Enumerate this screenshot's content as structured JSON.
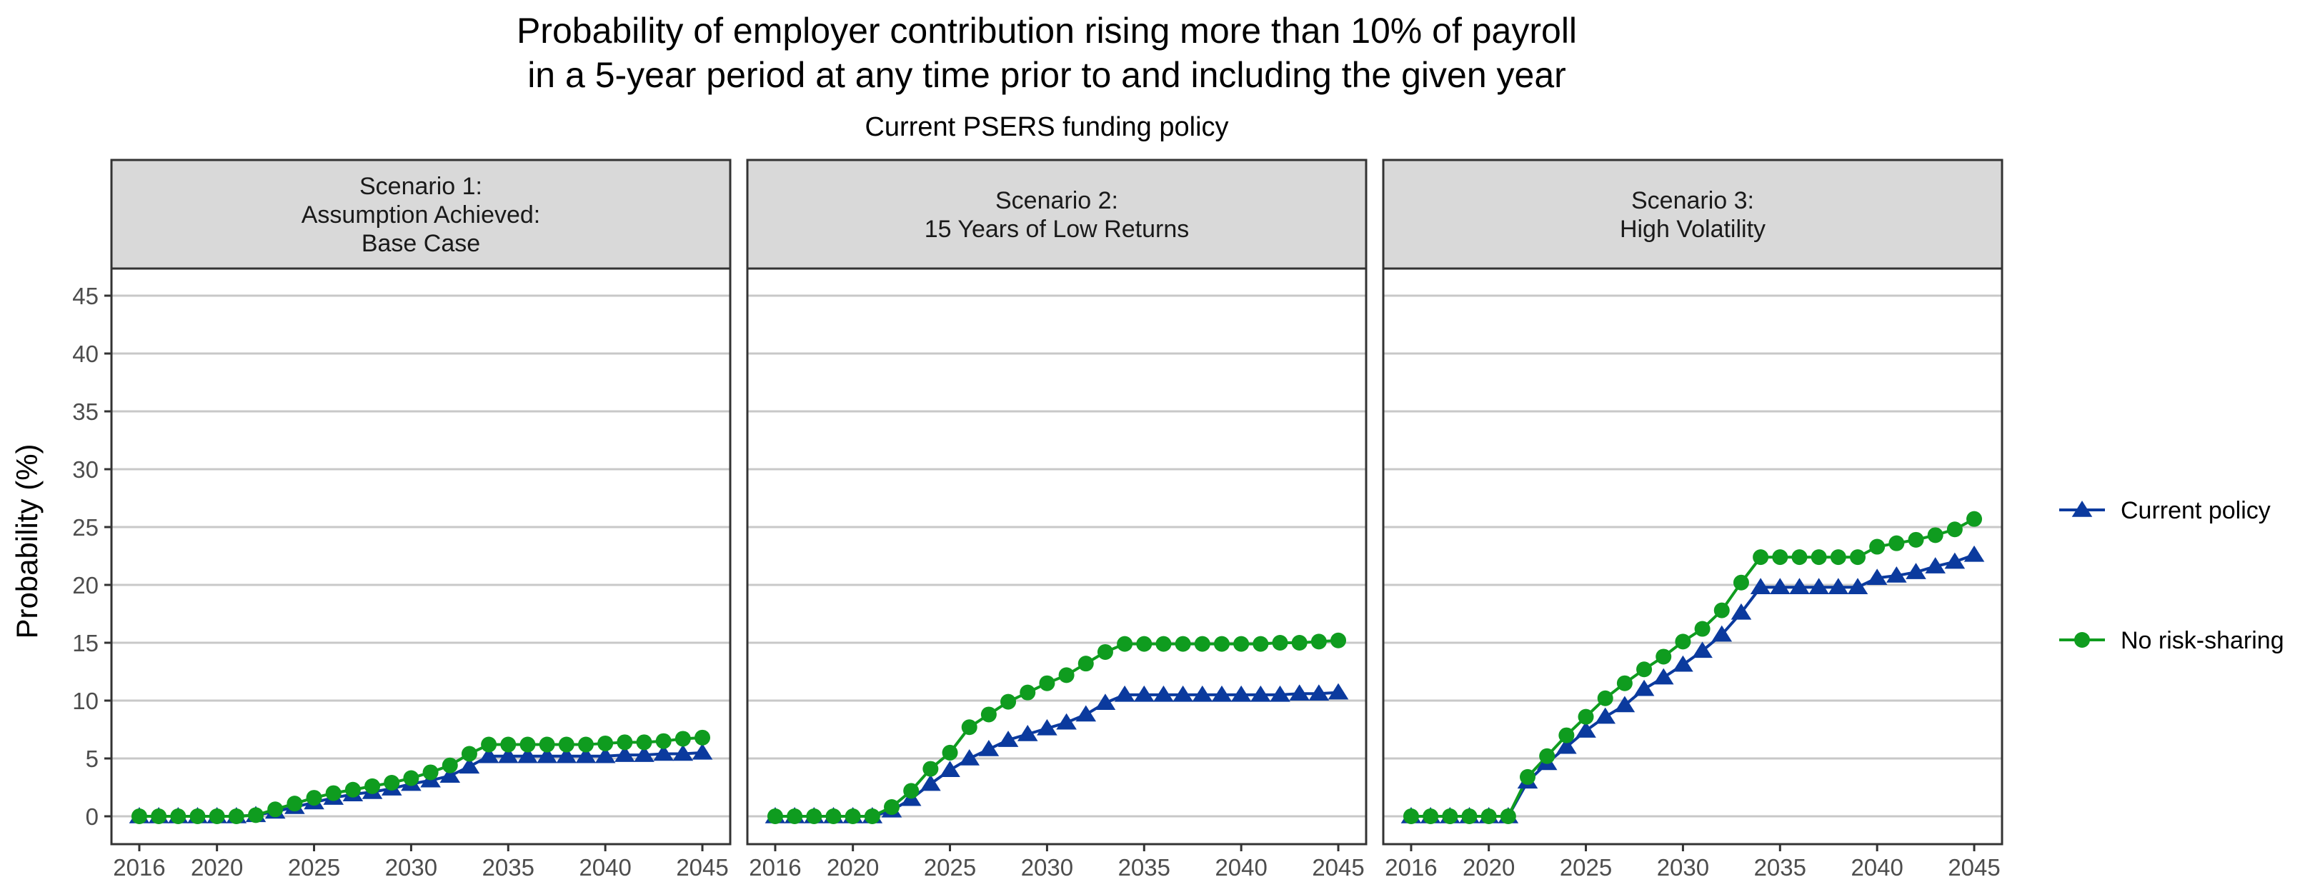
{
  "chart_data": {
    "type": "line",
    "title": "Probability of employer contribution rising more than 10% of payroll",
    "title_line2": "in a 5-year period at any time prior to and including the given year",
    "subtitle": "Current PSERS funding policy",
    "ylabel": "Probability (%)",
    "xlabel": "",
    "ylim": [
      0,
      45
    ],
    "xlim": [
      2016,
      2045
    ],
    "y_ticks": [
      0,
      5,
      10,
      15,
      20,
      25,
      30,
      35,
      40,
      45
    ],
    "x_ticks": [
      2016,
      2020,
      2025,
      2030,
      2035,
      2040,
      2045
    ],
    "grid": "horizontal",
    "legend_position": "right",
    "x": [
      2016,
      2017,
      2018,
      2019,
      2020,
      2021,
      2022,
      2023,
      2024,
      2025,
      2026,
      2027,
      2028,
      2029,
      2030,
      2031,
      2032,
      2033,
      2034,
      2035,
      2036,
      2037,
      2038,
      2039,
      2040,
      2041,
      2042,
      2043,
      2044,
      2045
    ],
    "series_styles": [
      {
        "name": "Current policy",
        "color": "#0b3a9e",
        "marker": "triangle"
      },
      {
        "name": "No risk-sharing",
        "color": "#0f9c1f",
        "marker": "circle"
      }
    ],
    "panels": [
      {
        "label_lines": [
          "Scenario 1:",
          "Assumption Achieved:",
          "Base Case"
        ],
        "series": [
          {
            "name": "Current policy",
            "values": [
              0,
              0,
              0,
              0,
              0,
              0,
              0.1,
              0.4,
              0.8,
              1.2,
              1.6,
              1.9,
              2.1,
              2.4,
              2.8,
              3.1,
              3.5,
              4.3,
              5.2,
              5.2,
              5.2,
              5.2,
              5.2,
              5.2,
              5.2,
              5.3,
              5.3,
              5.4,
              5.4,
              5.5
            ]
          },
          {
            "name": "No risk-sharing",
            "values": [
              0,
              0,
              0,
              0,
              0,
              0,
              0.1,
              0.6,
              1.1,
              1.6,
              2.0,
              2.3,
              2.6,
              2.9,
              3.3,
              3.8,
              4.4,
              5.4,
              6.2,
              6.2,
              6.2,
              6.2,
              6.2,
              6.2,
              6.3,
              6.4,
              6.4,
              6.5,
              6.7,
              6.8
            ]
          }
        ]
      },
      {
        "label_lines": [
          "Scenario 2:",
          "15 Years of Low Returns"
        ],
        "series": [
          {
            "name": "Current policy",
            "values": [
              0,
              0,
              0,
              0,
              0,
              0,
              0.5,
              1.5,
              2.8,
              4.0,
              5.0,
              5.8,
              6.6,
              7.1,
              7.6,
              8.1,
              8.8,
              9.8,
              10.5,
              10.5,
              10.5,
              10.5,
              10.5,
              10.5,
              10.5,
              10.5,
              10.5,
              10.6,
              10.6,
              10.7
            ]
          },
          {
            "name": "No risk-sharing",
            "values": [
              0,
              0,
              0,
              0,
              0,
              0,
              0.8,
              2.2,
              4.1,
              5.5,
              7.7,
              8.8,
              9.9,
              10.7,
              11.5,
              12.2,
              13.2,
              14.2,
              14.9,
              14.9,
              14.9,
              14.9,
              14.9,
              14.9,
              14.9,
              14.9,
              15.0,
              15.0,
              15.1,
              15.2
            ]
          }
        ]
      },
      {
        "label_lines": [
          "Scenario 3:",
          "High Volatility"
        ],
        "series": [
          {
            "name": "Current policy",
            "values": [
              0,
              0,
              0,
              0,
              0,
              0,
              3.0,
              4.6,
              6.0,
              7.4,
              8.6,
              9.6,
              11.0,
              12.0,
              13.1,
              14.3,
              15.7,
              17.6,
              19.8,
              19.8,
              19.8,
              19.8,
              19.8,
              19.8,
              20.6,
              20.8,
              21.1,
              21.6,
              22.0,
              22.6
            ]
          },
          {
            "name": "No risk-sharing",
            "values": [
              0,
              0,
              0,
              0,
              0,
              0,
              3.4,
              5.2,
              7.0,
              8.6,
              10.2,
              11.5,
              12.7,
              13.8,
              15.1,
              16.2,
              17.8,
              20.2,
              22.4,
              22.4,
              22.4,
              22.4,
              22.4,
              22.4,
              23.3,
              23.6,
              23.9,
              24.3,
              24.8,
              25.7
            ]
          }
        ]
      }
    ]
  }
}
